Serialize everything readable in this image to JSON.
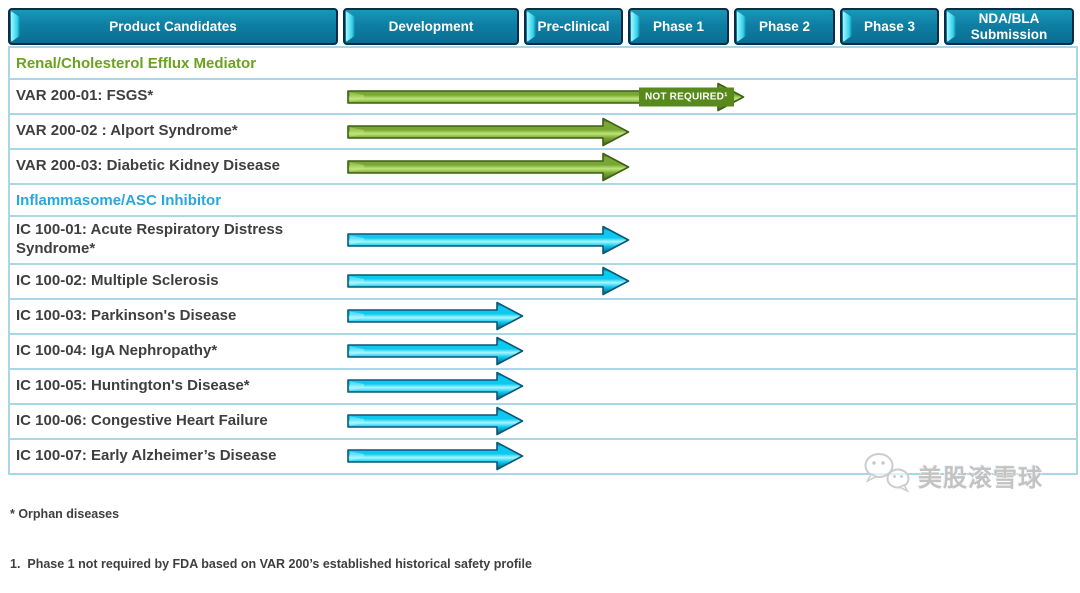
{
  "header": {
    "columns": [
      "Product Candidates",
      "Development",
      "Pre-clinical",
      "Phase 1",
      "Phase 2",
      "Phase 3",
      "NDA/BLA Submission"
    ]
  },
  "sections": [
    {
      "title": "Renal/Cholesterol Efflux Mediator",
      "theme": "green",
      "title_color": "#6ba21f",
      "rows": [
        {
          "label": "VAR 200-01: FSGS*",
          "extent": "phase-1",
          "badge": "NOT REQUIRED¹"
        },
        {
          "label": "VAR 200-02 : Alport Syndrome*",
          "extent": "pre-clinical"
        },
        {
          "label": "VAR 200-03: Diabetic Kidney Disease",
          "extent": "pre-clinical"
        }
      ]
    },
    {
      "title": "Inflammasome/ASC Inhibitor",
      "theme": "cyan",
      "title_color": "#2aa7da",
      "rows": [
        {
          "label": "IC 100-01: Acute Respiratory Distress Syndrome*",
          "extent": "pre-clinical"
        },
        {
          "label": "IC 100-02: Multiple Sclerosis",
          "extent": "pre-clinical"
        },
        {
          "label": "IC 100-03: Parkinson's Disease",
          "extent": "development"
        },
        {
          "label": "IC 100-04: IgA Nephropathy*",
          "extent": "development"
        },
        {
          "label": "IC 100-05: Huntington's Disease*",
          "extent": "development"
        },
        {
          "label": "IC 100-06: Congestive Heart Failure",
          "extent": "development"
        },
        {
          "label": "IC 100-07: Early Alzheimer’s Disease",
          "extent": "development"
        }
      ]
    }
  ],
  "footnotes": [
    "* Orphan diseases",
    "1.  Phase 1 not required by FDA based on VAR 200’s established historical safety profile"
  ],
  "watermark": {
    "text": "美股滚雪球",
    "icon": "wechat-chat-bubbles-icon"
  },
  "colors": {
    "header_bg": "#0e7fa4",
    "header_bevel": "#2fd0ea",
    "header_border": "#0d2b45",
    "row_border": "#a9d7e8",
    "label_text": "#3f3f3f",
    "green": {
      "main": "#79a733",
      "dark": "#41631a",
      "light": "#bfe57b",
      "edge": "#3f5f14",
      "section": "#6ba21f",
      "badge_bg": "#578a1b"
    },
    "cyan": {
      "main": "#0cc9f0",
      "dark": "#0d546f",
      "light": "#a9f6ff",
      "edge": "#0b5876",
      "section": "#2aa7da"
    }
  },
  "chart_data": {
    "type": "bar",
    "orientation": "horizontal",
    "title": "Product development pipeline",
    "stages": [
      "Development",
      "Pre-clinical",
      "Phase 1",
      "Phase 2",
      "Phase 3",
      "NDA/BLA Submission"
    ],
    "series": [
      {
        "name": "Renal/Cholesterol Efflux Mediator",
        "color": "#79a733",
        "items": [
          {
            "candidate": "VAR 200-01: FSGS*",
            "progress_through": "Phase 1",
            "annotation": "NOT REQUIRED¹"
          },
          {
            "candidate": "VAR 200-02 : Alport Syndrome*",
            "progress_through": "Pre-clinical"
          },
          {
            "candidate": "VAR 200-03: Diabetic Kidney Disease",
            "progress_through": "Pre-clinical"
          }
        ]
      },
      {
        "name": "Inflammasome/ASC Inhibitor",
        "color": "#0cc9f0",
        "items": [
          {
            "candidate": "IC 100-01: Acute Respiratory Distress Syndrome*",
            "progress_through": "Pre-clinical"
          },
          {
            "candidate": "IC 100-02: Multiple Sclerosis",
            "progress_through": "Pre-clinical"
          },
          {
            "candidate": "IC 100-03: Parkinson's Disease",
            "progress_through": "Development"
          },
          {
            "candidate": "IC 100-04: IgA Nephropathy*",
            "progress_through": "Development"
          },
          {
            "candidate": "IC 100-05: Huntington's Disease*",
            "progress_through": "Development"
          },
          {
            "candidate": "IC 100-06: Congestive Heart Failure",
            "progress_through": "Development"
          },
          {
            "candidate": "IC 100-07: Early Alzheimer’s Disease",
            "progress_through": "Development"
          }
        ]
      }
    ]
  }
}
